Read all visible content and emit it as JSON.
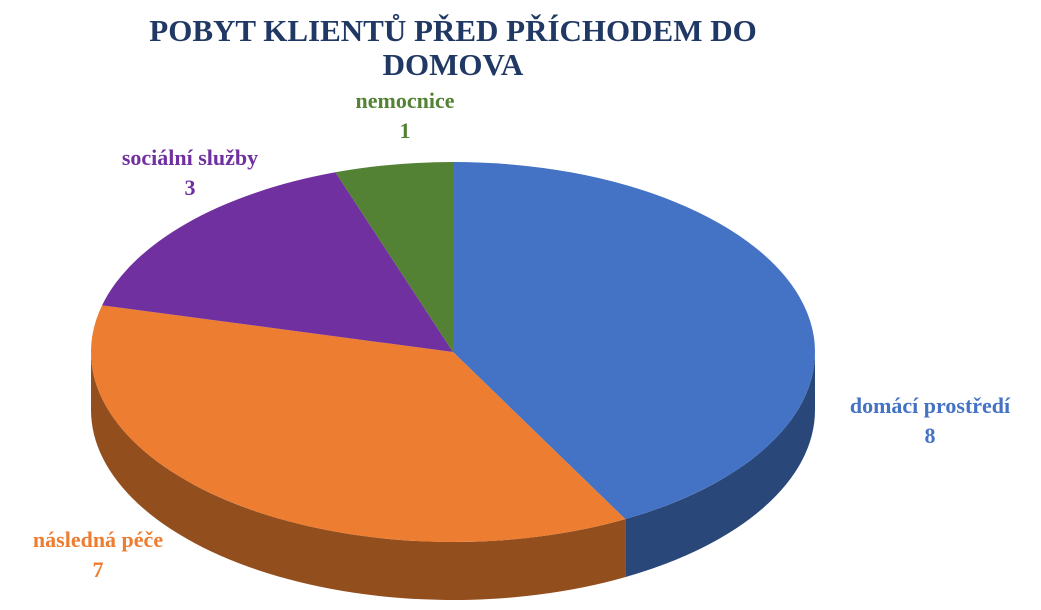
{
  "chart_data": {
    "type": "pie",
    "title": "POBYT KLIENTŮ PŘED PŘÍCHODEM DO DOMOVA",
    "categories": [
      "domácí prostředí",
      "následná péče",
      "sociální služby",
      "nemocnice"
    ],
    "values": [
      8,
      7,
      3,
      1
    ],
    "colors": [
      "#4472c4",
      "#ed7d31",
      "#7030a0",
      "#548235"
    ]
  }
}
